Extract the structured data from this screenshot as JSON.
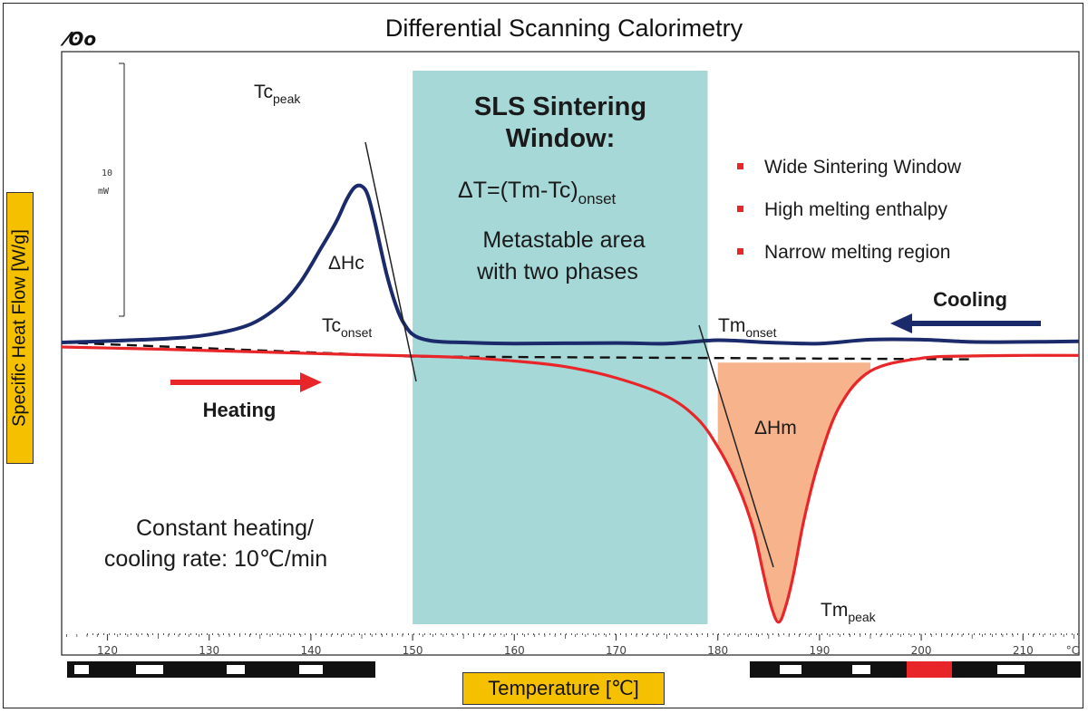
{
  "chart_data": {
    "type": "line",
    "title": "Differential Scanning Calorimetry",
    "xlabel": "Temperature [℃]",
    "ylabel": "Specific Heat Flow [W/g]",
    "x_unit": "°C",
    "xlim": [
      115.5,
      215.5
    ],
    "x_ticks": [
      120,
      130,
      140,
      150,
      160,
      170,
      180,
      190,
      200,
      210
    ],
    "scale_bar": {
      "value": "10",
      "unit": "mW"
    },
    "colors": {
      "cooling": "#1b2a6b",
      "heating": "#e8262a",
      "window": "#a6d8d8",
      "melt_area": "#f7b48c",
      "box": "#f5c000"
    },
    "series": [
      {
        "name": "Cooling",
        "color": "#1b2a6b",
        "x": [
          115.5,
          125,
          130,
          134,
          137,
          139,
          141,
          142.5,
          143.5,
          144.3,
          145,
          145.6,
          146.3,
          147.5,
          148.6,
          149.5,
          150.3,
          151.5,
          153,
          155,
          160,
          170,
          175,
          180,
          185,
          190,
          195,
          200,
          205,
          210,
          215.5
        ],
        "y": [
          0.0,
          0.6,
          1.4,
          3.2,
          6.7,
          10.8,
          16.8,
          21.5,
          25.4,
          27.6,
          27.8,
          26.2,
          21.3,
          11.8,
          5.4,
          2.4,
          1.1,
          0.4,
          0.1,
          0.0,
          -0.2,
          -0.1,
          -0.2,
          0.4,
          0.0,
          -0.2,
          0.5,
          0.5,
          0.1,
          0.1,
          0.2
        ]
      },
      {
        "name": "Heating",
        "color": "#e8262a",
        "x": [
          115.5,
          125,
          135,
          145,
          150,
          155,
          160,
          165,
          170,
          175,
          178,
          180,
          182,
          183.5,
          184.5,
          185.3,
          186,
          186.7,
          187.5,
          188.5,
          190,
          192,
          195,
          200,
          205,
          210,
          215.5
        ],
        "y": [
          -0.8,
          -1.2,
          -1.7,
          -2.2,
          -2.4,
          -2.7,
          -3.3,
          -4.3,
          -6.3,
          -9.6,
          -13.6,
          -18.6,
          -25.6,
          -33.3,
          -41.3,
          -47.3,
          -49.8,
          -46.8,
          -40.8,
          -31.3,
          -20.8,
          -11.3,
          -5.1,
          -2.8,
          -2.4,
          -2.3,
          -2.3
        ]
      }
    ],
    "annotations": {
      "window_title": "SLS Sintering Window:",
      "delta_t_main": "ΔT=(Tm-Tc)",
      "delta_t_sub": "onset",
      "metastable_line1": "Metastable area",
      "metastable_line2": "with two phases",
      "tc_peak_main": "Tc",
      "tc_peak_sub": "peak",
      "tc_onset_main": "Tc",
      "tc_onset_sub": "onset",
      "tm_onset_main": "Tm",
      "tm_onset_sub": "onset",
      "tm_peak_main": "Tm",
      "tm_peak_sub": "peak",
      "delta_hc": "ΔHc",
      "delta_hm": "ΔHm",
      "cooling": "Cooling",
      "heating": "Heating",
      "rate_line1": "Constant heating/",
      "rate_line2": "cooling rate: 10℃/min"
    },
    "legend": [
      "Wide Sintering Window",
      "High melting enthalpy",
      "Narrow melting region"
    ],
    "sintering_window": [
      150,
      179
    ],
    "melt_area_start": 179
  }
}
